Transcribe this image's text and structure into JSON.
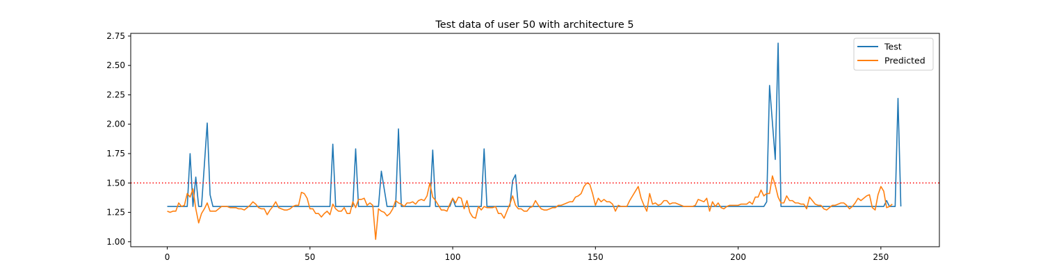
{
  "chart_data": {
    "type": "line",
    "title": "Test data of user 50 with architecture 5",
    "xlabel": "",
    "ylabel": "",
    "xlim": [
      -12.8,
      270.5
    ],
    "ylim": [
      0.9575,
      2.773
    ],
    "xticks": [
      0,
      50,
      100,
      150,
      200,
      250
    ],
    "yticks": [
      1.0,
      1.25,
      1.5,
      1.75,
      2.0,
      2.25,
      2.5,
      2.75
    ],
    "xtick_labels": [
      "0",
      "50",
      "100",
      "150",
      "200",
      "250"
    ],
    "ytick_labels": [
      "1.00",
      "1.25",
      "1.50",
      "1.75",
      "2.00",
      "2.25",
      "2.50",
      "2.75"
    ],
    "legend_position": "top-right",
    "grid": false,
    "threshold": {
      "value": 1.5,
      "color": "#ff0000",
      "style": "dotted"
    },
    "series": [
      {
        "name": "Test",
        "color": "#1f77b4",
        "points": [
          [
            0,
            1.3
          ],
          [
            7,
            1.3
          ],
          [
            8,
            1.75
          ],
          [
            9,
            1.3
          ],
          [
            10,
            1.55
          ],
          [
            11,
            1.3
          ],
          [
            12,
            1.3
          ],
          [
            14,
            2.01
          ],
          [
            15,
            1.4
          ],
          [
            16,
            1.3
          ],
          [
            57,
            1.3
          ],
          [
            58,
            1.83
          ],
          [
            59,
            1.3
          ],
          [
            65,
            1.3
          ],
          [
            66,
            1.79
          ],
          [
            67,
            1.3
          ],
          [
            74,
            1.3
          ],
          [
            75,
            1.6
          ],
          [
            77,
            1.3
          ],
          [
            80,
            1.3
          ],
          [
            81,
            1.96
          ],
          [
            82,
            1.3
          ],
          [
            92,
            1.3
          ],
          [
            93,
            1.78
          ],
          [
            94,
            1.3
          ],
          [
            99,
            1.3
          ],
          [
            100,
            1.37
          ],
          [
            101,
            1.3
          ],
          [
            110,
            1.3
          ],
          [
            111,
            1.79
          ],
          [
            112,
            1.3
          ],
          [
            120,
            1.3
          ],
          [
            121,
            1.52
          ],
          [
            122,
            1.57
          ],
          [
            123,
            1.3
          ],
          [
            209,
            1.3
          ],
          [
            210,
            1.34
          ],
          [
            211,
            2.33
          ],
          [
            213,
            1.7
          ],
          [
            214,
            2.69
          ],
          [
            215,
            1.3
          ],
          [
            251,
            1.3
          ],
          [
            252,
            1.35
          ],
          [
            253,
            1.3
          ],
          [
            255,
            1.3
          ],
          [
            256,
            2.22
          ],
          [
            257,
            1.3
          ]
        ]
      },
      {
        "name": "Predicted",
        "color": "#ff7f0e",
        "points": [
          [
            0,
            1.26
          ],
          [
            1,
            1.25
          ],
          [
            2,
            1.26
          ],
          [
            3,
            1.26
          ],
          [
            4,
            1.33
          ],
          [
            5,
            1.3
          ],
          [
            6,
            1.31
          ],
          [
            7,
            1.41
          ],
          [
            8,
            1.38
          ],
          [
            9,
            1.45
          ],
          [
            10,
            1.28
          ],
          [
            11,
            1.16
          ],
          [
            12,
            1.24
          ],
          [
            13,
            1.28
          ],
          [
            14,
            1.33
          ],
          [
            15,
            1.26
          ],
          [
            16,
            1.26
          ],
          [
            17,
            1.26
          ],
          [
            18,
            1.28
          ],
          [
            19,
            1.3
          ],
          [
            20,
            1.3
          ],
          [
            21,
            1.3
          ],
          [
            22,
            1.29
          ],
          [
            23,
            1.29
          ],
          [
            24,
            1.29
          ],
          [
            25,
            1.28
          ],
          [
            26,
            1.28
          ],
          [
            27,
            1.27
          ],
          [
            28,
            1.29
          ],
          [
            29,
            1.31
          ],
          [
            30,
            1.34
          ],
          [
            31,
            1.32
          ],
          [
            32,
            1.29
          ],
          [
            33,
            1.28
          ],
          [
            34,
            1.28
          ],
          [
            35,
            1.23
          ],
          [
            36,
            1.27
          ],
          [
            37,
            1.3
          ],
          [
            38,
            1.34
          ],
          [
            39,
            1.29
          ],
          [
            40,
            1.28
          ],
          [
            41,
            1.27
          ],
          [
            42,
            1.27
          ],
          [
            43,
            1.28
          ],
          [
            44,
            1.3
          ],
          [
            45,
            1.31
          ],
          [
            46,
            1.31
          ],
          [
            47,
            1.42
          ],
          [
            48,
            1.41
          ],
          [
            49,
            1.37
          ],
          [
            50,
            1.28
          ],
          [
            51,
            1.28
          ],
          [
            52,
            1.24
          ],
          [
            53,
            1.24
          ],
          [
            54,
            1.21
          ],
          [
            55,
            1.24
          ],
          [
            56,
            1.26
          ],
          [
            57,
            1.23
          ],
          [
            58,
            1.32
          ],
          [
            59,
            1.28
          ],
          [
            60,
            1.26
          ],
          [
            61,
            1.26
          ],
          [
            62,
            1.29
          ],
          [
            63,
            1.24
          ],
          [
            64,
            1.24
          ],
          [
            65,
            1.34
          ],
          [
            66,
            1.29
          ],
          [
            67,
            1.36
          ],
          [
            68,
            1.36
          ],
          [
            69,
            1.37
          ],
          [
            70,
            1.31
          ],
          [
            71,
            1.33
          ],
          [
            72,
            1.31
          ],
          [
            73,
            1.02
          ],
          [
            74,
            1.28
          ],
          [
            75,
            1.26
          ],
          [
            76,
            1.25
          ],
          [
            77,
            1.22
          ],
          [
            78,
            1.24
          ],
          [
            79,
            1.28
          ],
          [
            80,
            1.35
          ],
          [
            81,
            1.33
          ],
          [
            82,
            1.32
          ],
          [
            83,
            1.3
          ],
          [
            84,
            1.33
          ],
          [
            85,
            1.33
          ],
          [
            86,
            1.34
          ],
          [
            87,
            1.32
          ],
          [
            88,
            1.35
          ],
          [
            89,
            1.36
          ],
          [
            90,
            1.35
          ],
          [
            91,
            1.39
          ],
          [
            92,
            1.5
          ],
          [
            93,
            1.38
          ],
          [
            94,
            1.35
          ],
          [
            95,
            1.31
          ],
          [
            96,
            1.27
          ],
          [
            97,
            1.27
          ],
          [
            98,
            1.26
          ],
          [
            99,
            1.32
          ],
          [
            100,
            1.37
          ],
          [
            101,
            1.33
          ],
          [
            102,
            1.38
          ],
          [
            103,
            1.37
          ],
          [
            104,
            1.28
          ],
          [
            105,
            1.35
          ],
          [
            106,
            1.25
          ],
          [
            107,
            1.21
          ],
          [
            108,
            1.2
          ],
          [
            109,
            1.3
          ],
          [
            110,
            1.27
          ],
          [
            111,
            1.3
          ],
          [
            112,
            1.29
          ],
          [
            113,
            1.29
          ],
          [
            114,
            1.29
          ],
          [
            115,
            1.3
          ],
          [
            116,
            1.24
          ],
          [
            117,
            1.24
          ],
          [
            118,
            1.2
          ],
          [
            119,
            1.26
          ],
          [
            120,
            1.32
          ],
          [
            121,
            1.39
          ],
          [
            122,
            1.31
          ],
          [
            123,
            1.28
          ],
          [
            124,
            1.28
          ],
          [
            125,
            1.26
          ],
          [
            126,
            1.26
          ],
          [
            127,
            1.29
          ],
          [
            128,
            1.3
          ],
          [
            129,
            1.35
          ],
          [
            130,
            1.31
          ],
          [
            131,
            1.28
          ],
          [
            132,
            1.27
          ],
          [
            133,
            1.27
          ],
          [
            134,
            1.28
          ],
          [
            135,
            1.29
          ],
          [
            136,
            1.29
          ],
          [
            137,
            1.31
          ],
          [
            138,
            1.31
          ],
          [
            139,
            1.32
          ],
          [
            140,
            1.33
          ],
          [
            141,
            1.34
          ],
          [
            142,
            1.34
          ],
          [
            143,
            1.38
          ],
          [
            144,
            1.39
          ],
          [
            145,
            1.41
          ],
          [
            146,
            1.47
          ],
          [
            147,
            1.5
          ],
          [
            148,
            1.49
          ],
          [
            149,
            1.41
          ],
          [
            150,
            1.31
          ],
          [
            151,
            1.37
          ],
          [
            152,
            1.34
          ],
          [
            153,
            1.36
          ],
          [
            154,
            1.34
          ],
          [
            155,
            1.34
          ],
          [
            156,
            1.32
          ],
          [
            157,
            1.26
          ],
          [
            158,
            1.31
          ],
          [
            159,
            1.3
          ],
          [
            160,
            1.3
          ],
          [
            161,
            1.3
          ],
          [
            162,
            1.35
          ],
          [
            163,
            1.39
          ],
          [
            164,
            1.43
          ],
          [
            165,
            1.47
          ],
          [
            166,
            1.37
          ],
          [
            167,
            1.31
          ],
          [
            168,
            1.26
          ],
          [
            169,
            1.41
          ],
          [
            170,
            1.32
          ],
          [
            171,
            1.33
          ],
          [
            172,
            1.31
          ],
          [
            173,
            1.32
          ],
          [
            174,
            1.35
          ],
          [
            175,
            1.35
          ],
          [
            176,
            1.32
          ],
          [
            177,
            1.33
          ],
          [
            178,
            1.33
          ],
          [
            179,
            1.32
          ],
          [
            180,
            1.31
          ],
          [
            181,
            1.3
          ],
          [
            182,
            1.3
          ],
          [
            183,
            1.3
          ],
          [
            184,
            1.3
          ],
          [
            185,
            1.31
          ],
          [
            186,
            1.36
          ],
          [
            187,
            1.35
          ],
          [
            188,
            1.34
          ],
          [
            189,
            1.37
          ],
          [
            190,
            1.26
          ],
          [
            191,
            1.34
          ],
          [
            192,
            1.3
          ],
          [
            193,
            1.33
          ],
          [
            194,
            1.29
          ],
          [
            195,
            1.28
          ],
          [
            196,
            1.3
          ],
          [
            197,
            1.31
          ],
          [
            198,
            1.31
          ],
          [
            199,
            1.31
          ],
          [
            200,
            1.31
          ],
          [
            201,
            1.32
          ],
          [
            202,
            1.32
          ],
          [
            203,
            1.32
          ],
          [
            204,
            1.34
          ],
          [
            205,
            1.32
          ],
          [
            206,
            1.38
          ],
          [
            207,
            1.38
          ],
          [
            208,
            1.44
          ],
          [
            209,
            1.39
          ],
          [
            210,
            1.41
          ],
          [
            211,
            1.41
          ],
          [
            212,
            1.56
          ],
          [
            213,
            1.48
          ],
          [
            214,
            1.38
          ],
          [
            215,
            1.33
          ],
          [
            216,
            1.33
          ],
          [
            217,
            1.39
          ],
          [
            218,
            1.35
          ],
          [
            219,
            1.35
          ],
          [
            220,
            1.33
          ],
          [
            221,
            1.33
          ],
          [
            222,
            1.32
          ],
          [
            223,
            1.32
          ],
          [
            224,
            1.28
          ],
          [
            225,
            1.38
          ],
          [
            226,
            1.35
          ],
          [
            227,
            1.32
          ],
          [
            228,
            1.31
          ],
          [
            229,
            1.31
          ],
          [
            230,
            1.28
          ],
          [
            231,
            1.27
          ],
          [
            232,
            1.29
          ],
          [
            233,
            1.31
          ],
          [
            234,
            1.31
          ],
          [
            235,
            1.32
          ],
          [
            236,
            1.33
          ],
          [
            237,
            1.33
          ],
          [
            238,
            1.31
          ],
          [
            239,
            1.28
          ],
          [
            240,
            1.3
          ],
          [
            241,
            1.33
          ],
          [
            242,
            1.37
          ],
          [
            243,
            1.35
          ],
          [
            244,
            1.37
          ],
          [
            245,
            1.39
          ],
          [
            246,
            1.4
          ],
          [
            247,
            1.29
          ],
          [
            248,
            1.27
          ],
          [
            249,
            1.4
          ],
          [
            250,
            1.47
          ],
          [
            251,
            1.43
          ],
          [
            252,
            1.29
          ],
          [
            253,
            1.3
          ],
          [
            254,
            1.32
          ]
        ]
      }
    ]
  }
}
